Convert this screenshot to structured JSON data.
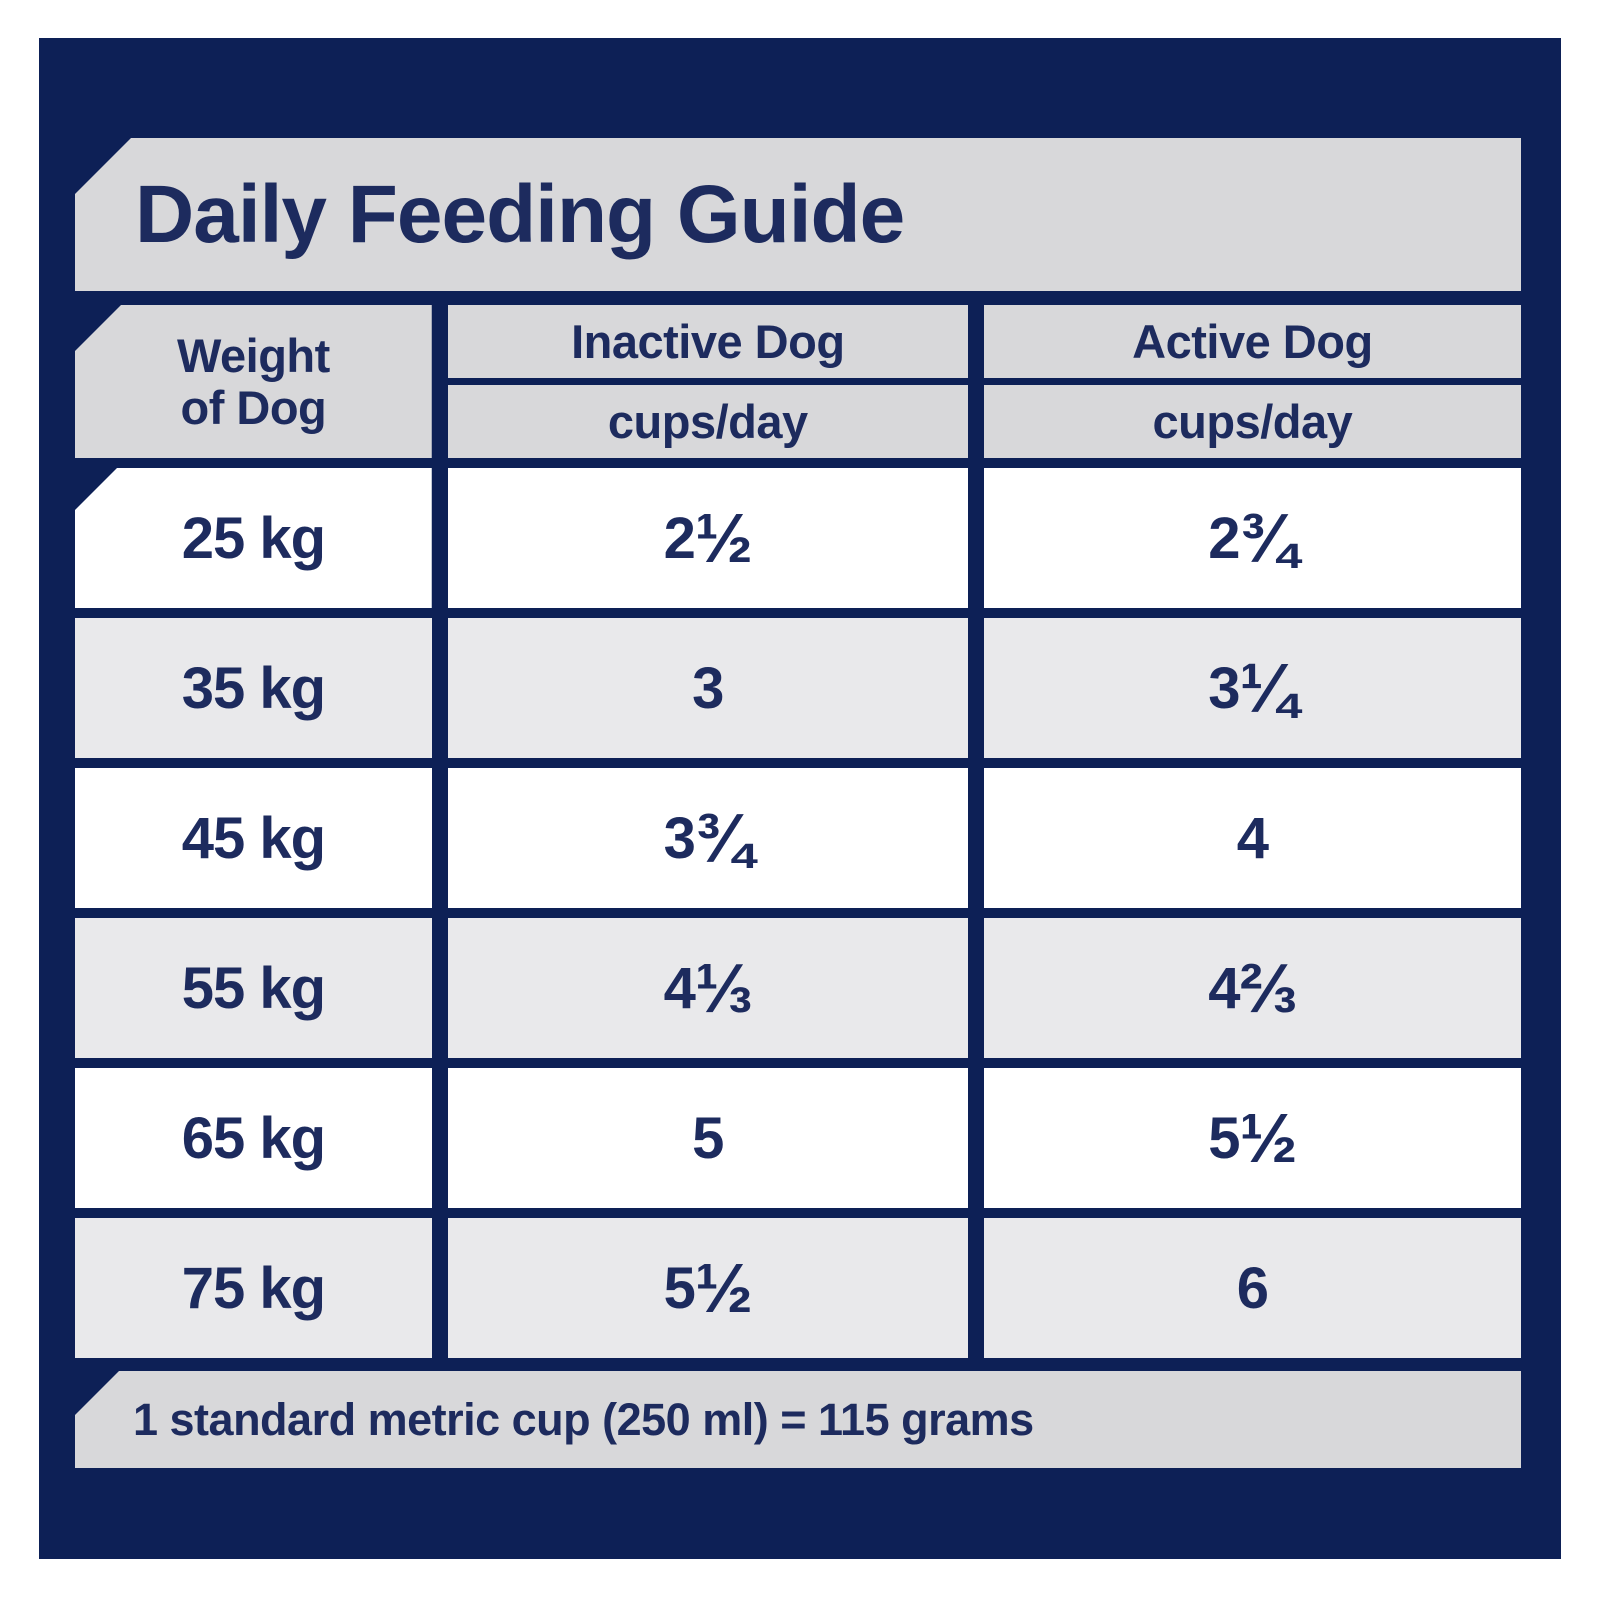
{
  "title": "Daily Feeding Guide",
  "header": {
    "weight_line1": "Weight",
    "weight_line2": "of Dog",
    "inactive_label": "Inactive Dog",
    "inactive_sub": "cups/day",
    "active_label": "Active Dog",
    "active_sub": "cups/day"
  },
  "chart_data": {
    "type": "table",
    "title": "Daily Feeding Guide",
    "columns": [
      "Weight of Dog",
      "Inactive Dog (cups/day)",
      "Active Dog (cups/day)"
    ],
    "rows": [
      [
        "25 kg",
        "2 ½",
        "2 ¾"
      ],
      [
        "35 kg",
        "3",
        "3 ¼"
      ],
      [
        "45 kg",
        "3 ¾",
        "4"
      ],
      [
        "55 kg",
        "4 ⅓",
        "4 ⅔"
      ],
      [
        "65 kg",
        "5",
        "5 ½"
      ],
      [
        "75 kg",
        "5 ½",
        "6"
      ]
    ],
    "footnote": "1 standard metric cup (250 ml) = 115 grams"
  },
  "colors": {
    "navy": "#0d2056",
    "text_navy": "#1d2b5e",
    "banner_gray": "#d8d8da",
    "row_gray": "#e9e9eb",
    "row_white": "#ffffff"
  }
}
